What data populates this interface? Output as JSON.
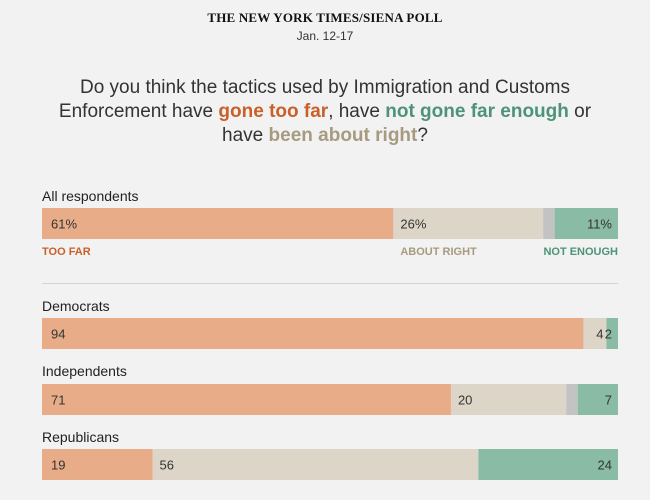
{
  "header": {
    "source": "THE NEW YORK TIMES/SIENA POLL",
    "dates": "Jan. 12-17"
  },
  "question": {
    "part1": "Do you think the tactics used by Immigration and Customs Enforcement have ",
    "too_far": "gone too far",
    "part2": ", have ",
    "not_enough": "not gone far enough",
    "part3": " or have ",
    "about_right": "been about right",
    "part4": "?"
  },
  "colors": {
    "too_far": "#e8ad88",
    "about_right": "#ddd6c8",
    "other": "#c3c3c3",
    "not_enough": "#8abba5",
    "too_far_text": "#c8602a",
    "about_right_text": "#a89a80",
    "not_enough_text": "#4d9377"
  },
  "chart_data": {
    "type": "stacked-bar",
    "title": "Do you think the tactics used by Immigration and Customs Enforcement have gone too far, have not gone far enough or have been about right?",
    "series": [
      {
        "name": "TOO FAR",
        "key": "too_far"
      },
      {
        "name": "ABOUT RIGHT",
        "key": "about_right"
      },
      {
        "name": "OTHER",
        "key": "other"
      },
      {
        "name": "NOT ENOUGH",
        "key": "not_enough"
      }
    ],
    "groups": [
      {
        "name": "All respondents",
        "too_far": 61,
        "about_right": 26,
        "other": 2,
        "not_enough": 11,
        "labels": {
          "too_far": "61%",
          "about_right": "26%",
          "not_enough": "11%"
        }
      },
      {
        "name": "Democrats",
        "too_far": 94,
        "about_right": 4,
        "other": 0,
        "not_enough": 2,
        "labels": {
          "too_far": "94",
          "about_right": "4",
          "not_enough": "2"
        }
      },
      {
        "name": "Independents",
        "too_far": 71,
        "about_right": 20,
        "other": 2,
        "not_enough": 7,
        "labels": {
          "too_far": "71",
          "about_right": "20",
          "not_enough": "7"
        }
      },
      {
        "name": "Republicans",
        "too_far": 19,
        "about_right": 56,
        "other": 0,
        "not_enough": 24,
        "labels": {
          "too_far": "19",
          "about_right": "56",
          "not_enough": "24"
        }
      }
    ],
    "category_labels": {
      "too_far": "TOO FAR",
      "about_right": "ABOUT RIGHT",
      "not_enough": "NOT ENOUGH"
    }
  }
}
